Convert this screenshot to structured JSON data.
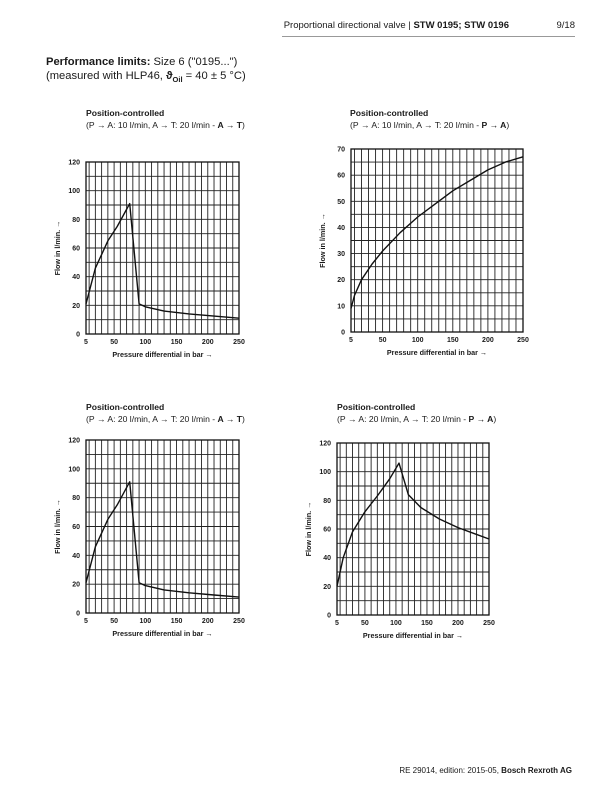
{
  "header": {
    "doc_prefix": "Proportional directional valve | ",
    "doc_bold": "STW 0195; STW 0196",
    "page": "9/18"
  },
  "limits": {
    "heading": "Performance limits:",
    "size": " Size 6 (\"0195...\")",
    "measured_prefix": "(measured with HLP46, ",
    "theta": "ϑ",
    "oil": "Oil",
    "measured_suffix": " = 40 ± 5 °C)"
  },
  "footer": {
    "edition": "RE 29014, edition: 2015-05, ",
    "company": "Bosch Rexroth AG"
  },
  "chart_data": [
    {
      "type": "line",
      "title": "Position-controlled",
      "subtitle_plain": "(P → A: 10 l/min, A → T: 20 l/min - ",
      "subtitle_bold": "A → T",
      "subtitle_end": ")",
      "xlabel": "Pressure differential in bar →",
      "ylabel": "Flow in l/min. →",
      "xlim": [
        5,
        250
      ],
      "ylim": [
        0,
        120
      ],
      "xticks": [
        5,
        50,
        100,
        150,
        200,
        250
      ],
      "yticks": [
        0,
        20,
        40,
        60,
        80,
        100,
        120
      ],
      "grid": true,
      "series": [
        {
          "x": [
            5,
            20,
            40,
            55,
            65,
            75,
            90,
            100,
            130,
            170,
            210,
            250
          ],
          "y": [
            21,
            46,
            65,
            75,
            83,
            91,
            21,
            19,
            16,
            14,
            12.5,
            11
          ]
        }
      ]
    },
    {
      "type": "line",
      "title": "Position-controlled",
      "subtitle_plain": "(P → A: 10 l/min, A → T: 20 l/min - ",
      "subtitle_bold": "P → A",
      "subtitle_end": ")",
      "xlabel": "Pressure differential in bar →",
      "ylabel": "Flow in l/min. →",
      "xlim": [
        5,
        250
      ],
      "ylim": [
        0,
        70
      ],
      "xticks": [
        5,
        50,
        100,
        150,
        200,
        250
      ],
      "yticks": [
        0,
        10,
        20,
        30,
        40,
        50,
        60,
        70
      ],
      "grid": true,
      "series": [
        {
          "x": [
            5,
            10,
            20,
            35,
            50,
            75,
            100,
            125,
            150,
            175,
            200,
            225,
            250
          ],
          "y": [
            9,
            14,
            20,
            26,
            31,
            38,
            44,
            49,
            54,
            58,
            62,
            65,
            67
          ]
        }
      ]
    },
    {
      "type": "line",
      "title": "Position-controlled",
      "subtitle_plain": "(P → A: 20 l/min, A → T: 20 l/min - ",
      "subtitle_bold": "A → T",
      "subtitle_end": ")",
      "xlabel": "Pressure differential in bar →",
      "ylabel": "Flow in l/min. →",
      "xlim": [
        5,
        250
      ],
      "ylim": [
        0,
        120
      ],
      "xticks": [
        5,
        50,
        100,
        150,
        200,
        250
      ],
      "yticks": [
        0,
        20,
        40,
        60,
        80,
        100,
        120
      ],
      "grid": true,
      "series": [
        {
          "x": [
            5,
            20,
            40,
            55,
            65,
            75,
            90,
            100,
            130,
            170,
            210,
            250
          ],
          "y": [
            21,
            46,
            65,
            75,
            83,
            91,
            21,
            19,
            16,
            14,
            12.5,
            11
          ]
        }
      ]
    },
    {
      "type": "line",
      "title": "Position-controlled",
      "subtitle_plain": "(P → A: 20 l/min, A → T: 20 l/min - ",
      "subtitle_bold": "P → A",
      "subtitle_end": ")",
      "xlabel": "Pressure differential in bar →",
      "ylabel": "Flow in l/min. →",
      "xlim": [
        5,
        250
      ],
      "ylim": [
        0,
        120
      ],
      "xticks": [
        5,
        50,
        100,
        150,
        200,
        250
      ],
      "yticks": [
        0,
        20,
        40,
        60,
        80,
        100,
        120
      ],
      "grid": true,
      "series": [
        {
          "x": [
            5,
            15,
            30,
            50,
            70,
            90,
            105,
            120,
            140,
            170,
            200,
            225,
            250
          ],
          "y": [
            20,
            40,
            58,
            72,
            83,
            95,
            106,
            84,
            75,
            67,
            61,
            57,
            53
          ]
        }
      ]
    }
  ]
}
